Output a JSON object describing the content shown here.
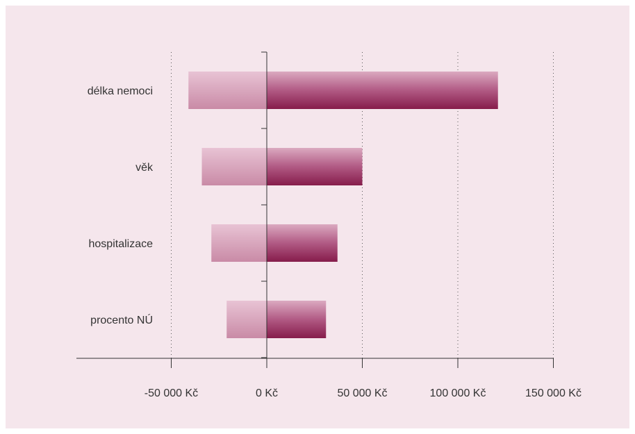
{
  "colors": {
    "background": "#f5e6ec",
    "negative_bar_light": "#e6bdd0",
    "negative_bar_dark": "#c98aa6",
    "positive_bar_light": "#d9a6bc",
    "positive_bar_dark": "#8a1e4e"
  },
  "chart_data": {
    "type": "bar",
    "orientation": "horizontal",
    "title": "",
    "xlabel": "",
    "ylabel": "",
    "categories": [
      "délka nemoci",
      "věk",
      "hospitalizace",
      "procento NÚ"
    ],
    "series": [
      {
        "values": [
          -41000,
          -34000,
          -29000,
          -21000
        ]
      },
      {
        "values": [
          121000,
          50000,
          37000,
          31000
        ]
      }
    ],
    "xlim": [
      -100000,
      150000
    ],
    "xticks": [
      -50000,
      0,
      50000,
      100000,
      150000
    ],
    "tick_labels": [
      "-50 000 Kč",
      "0 Kč",
      "50 000 Kč",
      "100 000 Kč",
      "150 000 Kč"
    ],
    "grid": "vertical dotted",
    "legend": "none"
  }
}
